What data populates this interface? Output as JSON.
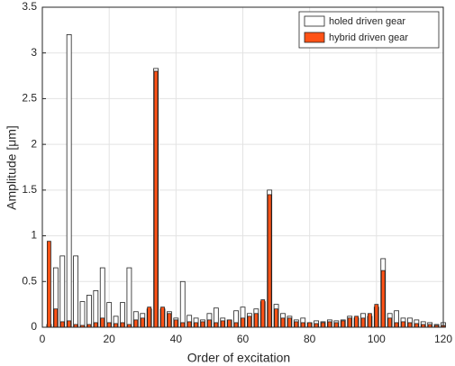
{
  "chart_data": {
    "type": "bar",
    "xlabel": "Order of excitation",
    "ylabel": "Amplitude [μm]",
    "x": [
      2,
      4,
      6,
      8,
      10,
      12,
      14,
      16,
      18,
      20,
      22,
      24,
      26,
      28,
      30,
      32,
      34,
      36,
      38,
      40,
      42,
      44,
      46,
      48,
      50,
      52,
      54,
      56,
      58,
      60,
      62,
      64,
      66,
      68,
      70,
      72,
      74,
      76,
      78,
      80,
      82,
      84,
      86,
      88,
      90,
      92,
      94,
      96,
      98,
      100,
      102,
      104,
      106,
      108,
      110,
      112,
      114,
      116,
      118,
      120
    ],
    "series": [
      {
        "name": "holed driven gear",
        "color": "#ffffff",
        "values": [
          0.03,
          0.65,
          0.78,
          3.2,
          0.78,
          0.28,
          0.35,
          0.4,
          0.65,
          0.27,
          0.12,
          0.27,
          0.65,
          0.17,
          0.15,
          0.2,
          2.83,
          0.2,
          0.17,
          0.1,
          0.5,
          0.13,
          0.1,
          0.08,
          0.15,
          0.21,
          0.1,
          0.08,
          0.18,
          0.22,
          0.15,
          0.2,
          0.28,
          1.5,
          0.25,
          0.15,
          0.12,
          0.08,
          0.1,
          0.05,
          0.07,
          0.06,
          0.08,
          0.07,
          0.08,
          0.12,
          0.1,
          0.15,
          0.12,
          0.22,
          0.75,
          0.15,
          0.18,
          0.1,
          0.1,
          0.08,
          0.06,
          0.05,
          0.03,
          0.05
        ]
      },
      {
        "name": "hybrid driven gear",
        "color": "#ff5216",
        "values": [
          0.94,
          0.2,
          0.06,
          0.07,
          0.03,
          0.02,
          0.03,
          0.05,
          0.1,
          0.05,
          0.04,
          0.05,
          0.03,
          0.08,
          0.1,
          0.22,
          2.8,
          0.22,
          0.15,
          0.08,
          0.05,
          0.06,
          0.05,
          0.06,
          0.08,
          0.05,
          0.07,
          0.08,
          0.05,
          0.1,
          0.12,
          0.15,
          0.3,
          1.45,
          0.2,
          0.1,
          0.1,
          0.06,
          0.05,
          0.05,
          0.04,
          0.05,
          0.06,
          0.05,
          0.07,
          0.1,
          0.12,
          0.1,
          0.15,
          0.25,
          0.62,
          0.1,
          0.05,
          0.06,
          0.05,
          0.04,
          0.03,
          0.03,
          0.02,
          0.02
        ]
      }
    ],
    "xlim": [
      0,
      120
    ],
    "xticks": [
      0,
      20,
      40,
      60,
      80,
      100,
      120
    ],
    "ylim": [
      0,
      3.5
    ],
    "yticks": [
      0,
      0.5,
      1,
      1.5,
      2,
      2.5,
      3,
      3.5
    ],
    "grid": true,
    "legend": "northeast"
  }
}
